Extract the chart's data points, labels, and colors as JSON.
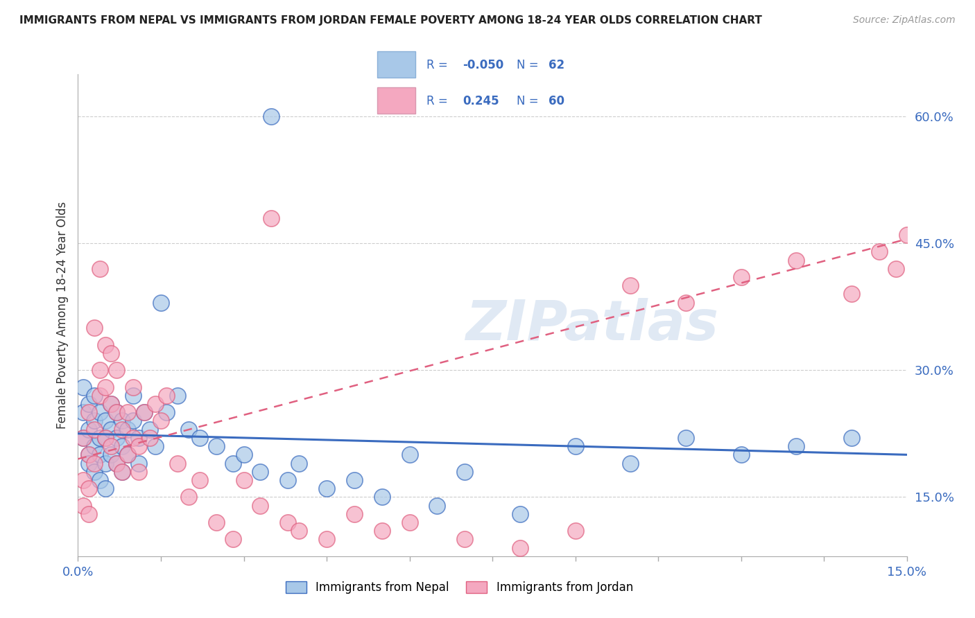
{
  "title": "IMMIGRANTS FROM NEPAL VS IMMIGRANTS FROM JORDAN FEMALE POVERTY AMONG 18-24 YEAR OLDS CORRELATION CHART",
  "source": "Source: ZipAtlas.com",
  "ylabel": "Female Poverty Among 18-24 Year Olds",
  "xlim": [
    0.0,
    0.15
  ],
  "ylim": [
    0.08,
    0.65
  ],
  "yticks_right": [
    0.15,
    0.3,
    0.45,
    0.6
  ],
  "ytick_labels_right": [
    "15.0%",
    "30.0%",
    "45.0%",
    "60.0%"
  ],
  "nepal_R": -0.05,
  "nepal_N": 62,
  "jordan_R": 0.245,
  "jordan_N": 60,
  "nepal_color": "#a8c8e8",
  "jordan_color": "#f4a8c0",
  "nepal_line_color": "#3a6bbf",
  "jordan_line_color": "#e06080",
  "watermark": "ZIPatlas",
  "nepal_line_y0": 0.225,
  "nepal_line_y1": 0.2,
  "jordan_line_y0": 0.195,
  "jordan_line_y1": 0.455,
  "nepal_x": [
    0.001,
    0.001,
    0.001,
    0.002,
    0.002,
    0.002,
    0.002,
    0.003,
    0.003,
    0.003,
    0.003,
    0.004,
    0.004,
    0.004,
    0.004,
    0.005,
    0.005,
    0.005,
    0.005,
    0.006,
    0.006,
    0.006,
    0.007,
    0.007,
    0.007,
    0.008,
    0.008,
    0.008,
    0.009,
    0.009,
    0.01,
    0.01,
    0.011,
    0.011,
    0.012,
    0.013,
    0.014,
    0.015,
    0.016,
    0.018,
    0.02,
    0.022,
    0.025,
    0.028,
    0.03,
    0.033,
    0.035,
    0.038,
    0.04,
    0.045,
    0.05,
    0.055,
    0.06,
    0.065,
    0.07,
    0.08,
    0.09,
    0.1,
    0.11,
    0.12,
    0.13,
    0.14
  ],
  "nepal_y": [
    0.22,
    0.25,
    0.28,
    0.2,
    0.23,
    0.26,
    0.19,
    0.21,
    0.24,
    0.27,
    0.18,
    0.22,
    0.25,
    0.2,
    0.17,
    0.24,
    0.22,
    0.19,
    0.16,
    0.26,
    0.23,
    0.2,
    0.25,
    0.22,
    0.19,
    0.24,
    0.21,
    0.18,
    0.23,
    0.2,
    0.27,
    0.24,
    0.22,
    0.19,
    0.25,
    0.23,
    0.21,
    0.38,
    0.25,
    0.27,
    0.23,
    0.22,
    0.21,
    0.19,
    0.2,
    0.18,
    0.6,
    0.17,
    0.19,
    0.16,
    0.17,
    0.15,
    0.2,
    0.14,
    0.18,
    0.13,
    0.21,
    0.19,
    0.22,
    0.2,
    0.21,
    0.22
  ],
  "jordan_x": [
    0.001,
    0.001,
    0.001,
    0.002,
    0.002,
    0.002,
    0.002,
    0.003,
    0.003,
    0.003,
    0.004,
    0.004,
    0.004,
    0.005,
    0.005,
    0.005,
    0.006,
    0.006,
    0.006,
    0.007,
    0.007,
    0.007,
    0.008,
    0.008,
    0.009,
    0.009,
    0.01,
    0.01,
    0.011,
    0.011,
    0.012,
    0.013,
    0.014,
    0.015,
    0.016,
    0.018,
    0.02,
    0.022,
    0.025,
    0.028,
    0.03,
    0.033,
    0.035,
    0.038,
    0.04,
    0.045,
    0.05,
    0.055,
    0.06,
    0.07,
    0.08,
    0.09,
    0.1,
    0.11,
    0.12,
    0.13,
    0.14,
    0.145,
    0.148,
    0.15
  ],
  "jordan_y": [
    0.14,
    0.17,
    0.22,
    0.2,
    0.25,
    0.16,
    0.13,
    0.23,
    0.19,
    0.35,
    0.27,
    0.3,
    0.42,
    0.33,
    0.28,
    0.22,
    0.32,
    0.26,
    0.21,
    0.3,
    0.25,
    0.19,
    0.23,
    0.18,
    0.25,
    0.2,
    0.28,
    0.22,
    0.21,
    0.18,
    0.25,
    0.22,
    0.26,
    0.24,
    0.27,
    0.19,
    0.15,
    0.17,
    0.12,
    0.1,
    0.17,
    0.14,
    0.48,
    0.12,
    0.11,
    0.1,
    0.13,
    0.11,
    0.12,
    0.1,
    0.09,
    0.11,
    0.4,
    0.38,
    0.41,
    0.43,
    0.39,
    0.44,
    0.42,
    0.46
  ]
}
